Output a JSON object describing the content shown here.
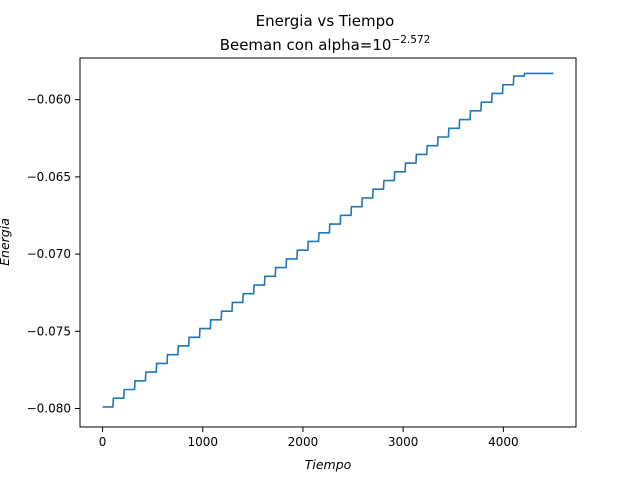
{
  "chart_data": {
    "type": "line",
    "title": "Energia vs Tiempo",
    "subtitle": {
      "prefix": "Beeman con alpha=10",
      "exponent": "−2.572"
    },
    "xlabel": "Tiempo",
    "ylabel": "Energia",
    "xlim": [
      -225,
      4725
    ],
    "ylim": [
      -0.0812,
      -0.0573
    ],
    "xticks": [
      0,
      1000,
      2000,
      3000,
      4000
    ],
    "xtick_labels": [
      "0",
      "1000",
      "2000",
      "3000",
      "4000"
    ],
    "yticks": [
      -0.08,
      -0.075,
      -0.07,
      -0.065,
      -0.06
    ],
    "ytick_labels": [
      "−0.080",
      "−0.075",
      "−0.070",
      "−0.065",
      "−0.060"
    ],
    "grid": false,
    "series": [
      {
        "color": "#1f77b4",
        "style": "step",
        "step_period": 108,
        "step_height": 0.000564,
        "x_start": 0,
        "x_end": 4500,
        "y_start": -0.0799,
        "y_end": -0.0583
      }
    ]
  }
}
